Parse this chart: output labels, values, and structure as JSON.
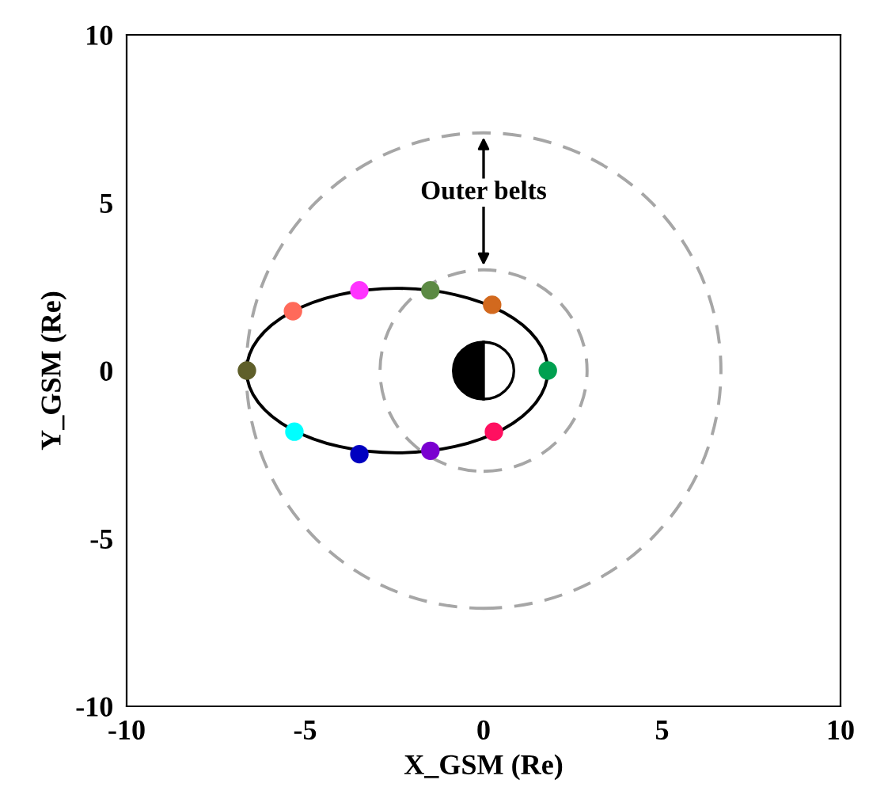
{
  "chart_data": {
    "type": "scatter",
    "xlabel": "X_GSM (Re)",
    "ylabel": "Y_GSM (Re)",
    "xlim": [
      -10,
      10
    ],
    "ylim": [
      -10,
      10
    ],
    "xticks": [
      -10,
      -5,
      0,
      5,
      10
    ],
    "yticks": [
      -10,
      -5,
      0,
      5,
      10
    ],
    "grid": false,
    "legend": false,
    "annotations": [
      "Outer belts"
    ],
    "series": [
      {
        "marker": "circle",
        "x": [
          -6.63,
          -5.34,
          -3.48,
          -1.49,
          0.24,
          1.8,
          0.29,
          -1.49,
          -3.48,
          -5.3
        ],
        "values": [
          0,
          1.77,
          2.39,
          2.39,
          1.96,
          0,
          -1.82,
          -2.39,
          -2.49,
          -1.82
        ],
        "colors": [
          "#5f5f2a",
          "#ff6a5a",
          "#ff33ff",
          "#5c8a44",
          "#d2691e",
          "#00a050",
          "#ff1060",
          "#7a00d0",
          "#0000c0",
          "#00ffff"
        ]
      }
    ]
  }
}
